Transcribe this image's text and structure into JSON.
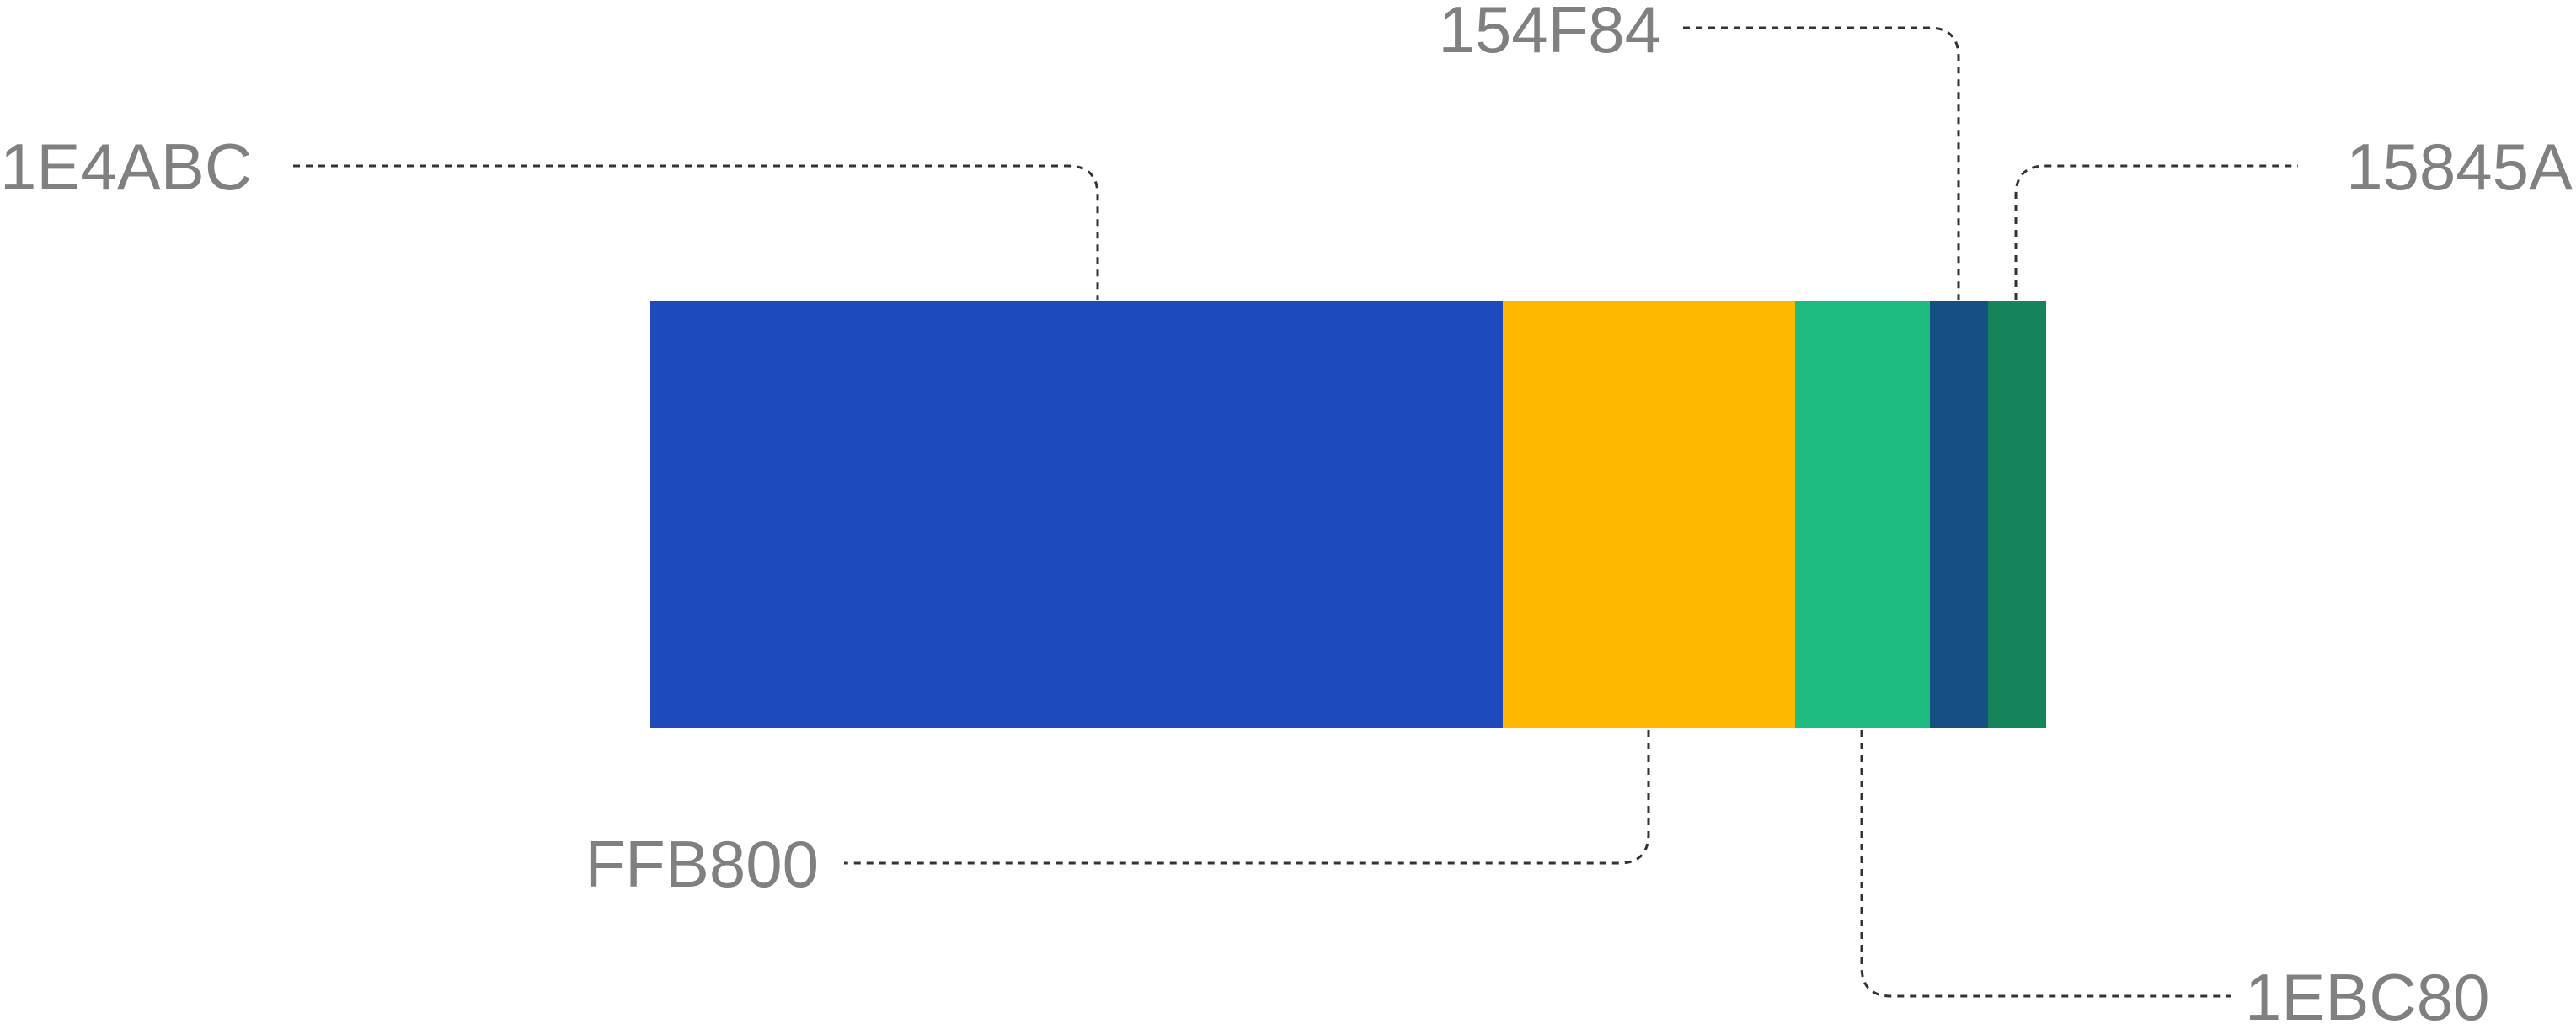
{
  "swatches": [
    {
      "label": "1E4ABC",
      "color": "#1E4ABC"
    },
    {
      "label": "FFB800",
      "color": "#FFB800"
    },
    {
      "label": "1EBC80",
      "color": "#1EBC80"
    },
    {
      "label": "154F84",
      "color": "#154F84"
    },
    {
      "label": "15845A",
      "color": "#15845A"
    }
  ]
}
